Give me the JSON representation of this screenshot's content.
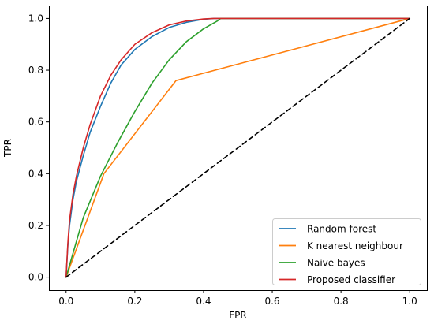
{
  "chart_data": {
    "type": "line",
    "title": "",
    "xlabel": "FPR",
    "ylabel": "TPR",
    "xlim": [
      -0.05,
      1.05
    ],
    "ylim": [
      -0.05,
      1.05
    ],
    "x_ticks": [
      0.0,
      0.2,
      0.4,
      0.6,
      0.8,
      1.0
    ],
    "y_ticks": [
      0.0,
      0.2,
      0.4,
      0.6,
      0.8,
      1.0
    ],
    "x_tick_labels": [
      "0.0",
      "0.2",
      "0.4",
      "0.6",
      "0.8",
      "1.0"
    ],
    "y_tick_labels": [
      "0.0",
      "0.2",
      "0.4",
      "0.6",
      "0.8",
      "1.0"
    ],
    "grid": false,
    "legend_position": "bottom-right",
    "series": [
      {
        "name": "Random forest",
        "color": "#1f77b4",
        "x": [
          0.0,
          0.005,
          0.01,
          0.02,
          0.03,
          0.05,
          0.07,
          0.1,
          0.13,
          0.16,
          0.2,
          0.25,
          0.3,
          0.35,
          0.4,
          0.43,
          1.0
        ],
        "y": [
          0.0,
          0.12,
          0.2,
          0.3,
          0.37,
          0.47,
          0.56,
          0.66,
          0.75,
          0.82,
          0.88,
          0.93,
          0.965,
          0.985,
          0.997,
          1.0,
          1.0
        ]
      },
      {
        "name": "K nearest neighbour",
        "color": "#ff7f0e",
        "x": [
          0.0,
          0.11,
          0.32,
          1.0
        ],
        "y": [
          0.0,
          0.4,
          0.76,
          1.0
        ]
      },
      {
        "name": "Naive bayes",
        "color": "#2ca02c",
        "x": [
          0.0,
          0.05,
          0.1,
          0.15,
          0.2,
          0.25,
          0.3,
          0.35,
          0.4,
          0.44,
          0.45,
          1.0
        ],
        "y": [
          0.0,
          0.23,
          0.39,
          0.52,
          0.64,
          0.75,
          0.84,
          0.91,
          0.96,
          0.99,
          1.0,
          1.0
        ]
      },
      {
        "name": "Proposed classifier",
        "color": "#d62728",
        "x": [
          0.0,
          0.005,
          0.01,
          0.02,
          0.03,
          0.05,
          0.07,
          0.1,
          0.13,
          0.16,
          0.2,
          0.25,
          0.3,
          0.35,
          0.4,
          0.43,
          1.0
        ],
        "y": [
          0.0,
          0.13,
          0.22,
          0.32,
          0.39,
          0.5,
          0.59,
          0.7,
          0.78,
          0.84,
          0.9,
          0.945,
          0.975,
          0.99,
          0.998,
          1.0,
          1.0
        ]
      },
      {
        "name": "",
        "color": "#000000",
        "dashed": true,
        "x": [
          0.0,
          1.0
        ],
        "y": [
          0.0,
          1.0
        ]
      }
    ]
  }
}
